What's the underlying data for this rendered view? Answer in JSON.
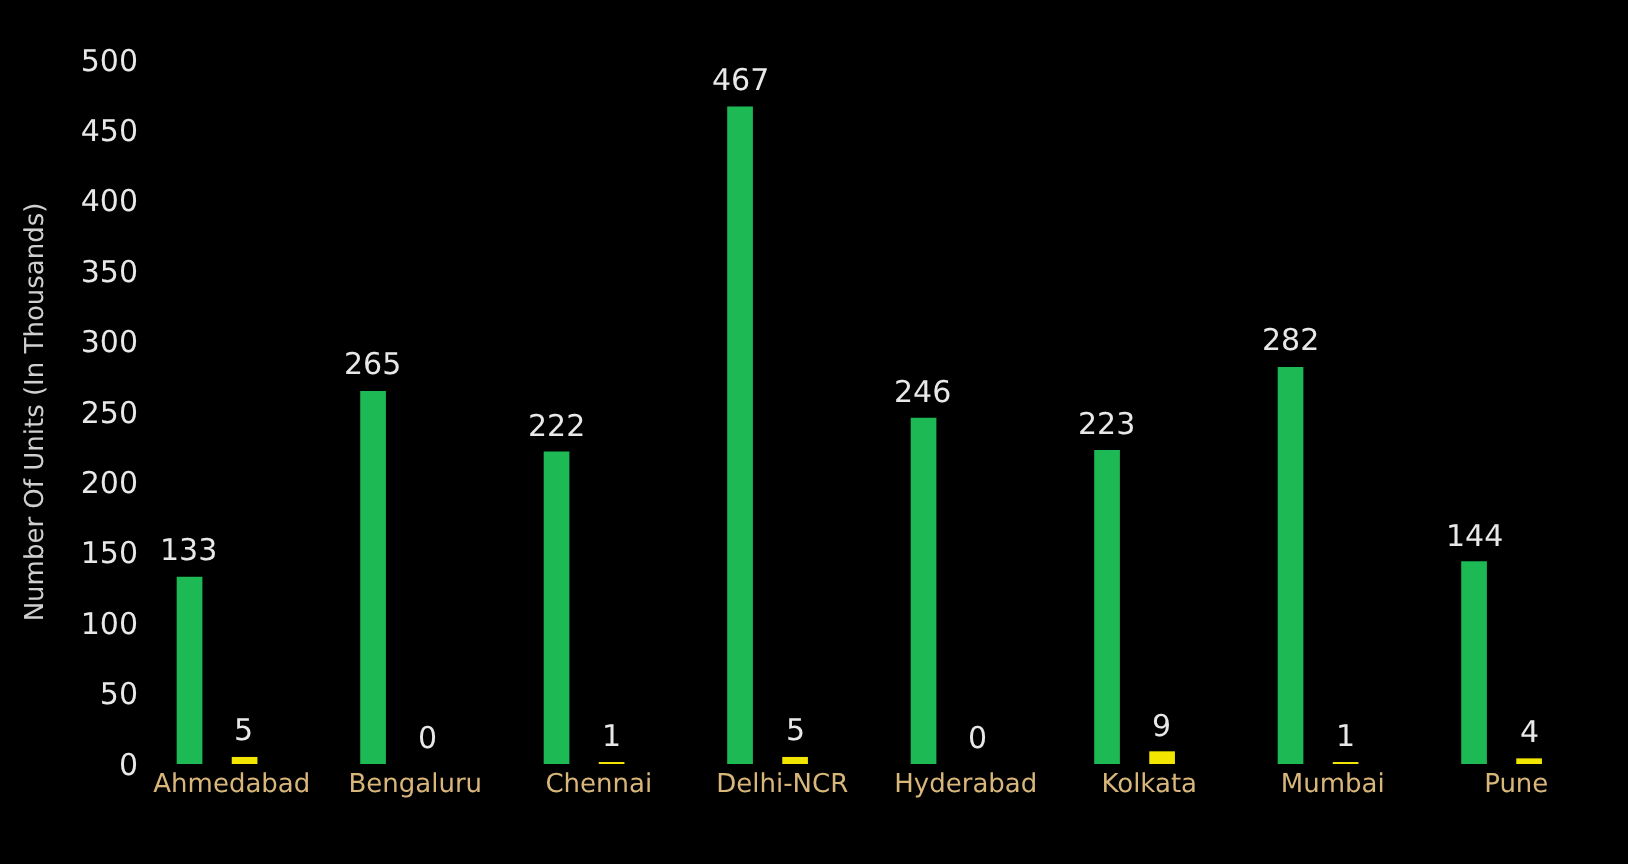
{
  "chart_data": {
    "type": "bar",
    "ylabel": "Number Of Units (In Thousands)",
    "categories": [
      "Ahmedabad",
      "Bengaluru",
      "Chennai",
      "Delhi-NCR",
      "Hyderabad",
      "Kolkata",
      "Mumbai",
      "Pune"
    ],
    "series": [
      {
        "color": "#1db954",
        "values": [
          133,
          265,
          222,
          467,
          246,
          223,
          282,
          144
        ]
      },
      {
        "color": "#f2e600",
        "values": [
          5,
          0,
          1,
          5,
          0,
          9,
          1,
          4
        ]
      }
    ],
    "ylim": [
      0,
      500
    ],
    "yticks": [
      0,
      50,
      100,
      150,
      200,
      250,
      300,
      350,
      400,
      450,
      500
    ],
    "data_labels": true,
    "grid": false
  }
}
